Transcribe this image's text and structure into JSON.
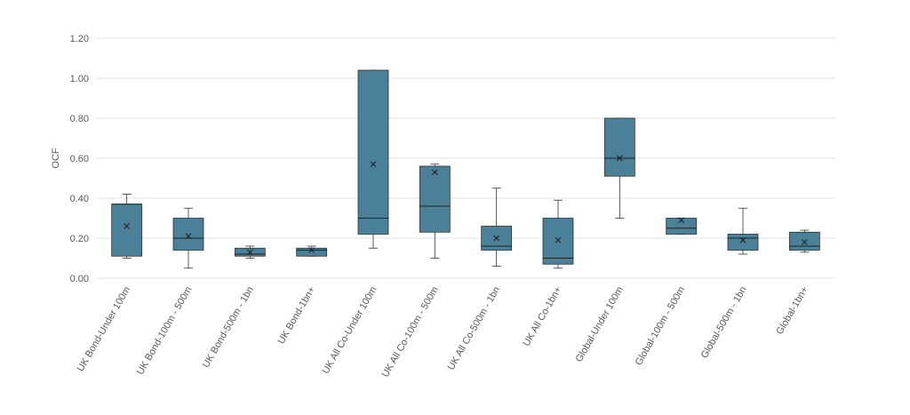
{
  "chart_data": {
    "type": "box",
    "title": "",
    "xlabel": "",
    "ylabel": "OCF",
    "ylim": [
      0,
      1.2
    ],
    "yticks": [
      "0.00",
      "0.20",
      "0.40",
      "0.60",
      "0.80",
      "1.00",
      "1.20"
    ],
    "grid": true,
    "legend": "none",
    "box_color": "#4a8199",
    "categories": [
      "UK Bond-Under 100m",
      "UK Bond-100m - 500m",
      "UK Bond-500m - 1bn",
      "UK Bond-1bn+",
      "UK All Co-Under 100m",
      "UK All Co-100m - 500m",
      "UK All Co-500m - 1bn",
      "UK All Co-1bn+",
      "Global-Under 100m",
      "Global-100m - 500m",
      "Global-500m - 1bn",
      "Global-1bn+"
    ],
    "boxes": [
      {
        "min": 0.1,
        "q1": 0.11,
        "median": 0.37,
        "q3": 0.37,
        "max": 0.42,
        "mean": 0.26
      },
      {
        "min": 0.05,
        "q1": 0.14,
        "median": 0.2,
        "q3": 0.3,
        "max": 0.35,
        "mean": 0.21
      },
      {
        "min": 0.1,
        "q1": 0.11,
        "median": 0.12,
        "q3": 0.15,
        "max": 0.16,
        "mean": 0.13
      },
      {
        "min": 0.11,
        "q1": 0.11,
        "median": 0.14,
        "q3": 0.15,
        "max": 0.16,
        "mean": 0.14
      },
      {
        "min": 0.15,
        "q1": 0.22,
        "median": 0.3,
        "q3": 1.04,
        "max": 1.04,
        "mean": 0.57
      },
      {
        "min": 0.1,
        "q1": 0.23,
        "median": 0.36,
        "q3": 0.56,
        "max": 0.57,
        "mean": 0.53
      },
      {
        "min": 0.06,
        "q1": 0.14,
        "median": 0.16,
        "q3": 0.26,
        "max": 0.45,
        "mean": 0.2
      },
      {
        "min": 0.05,
        "q1": 0.07,
        "median": 0.1,
        "q3": 0.3,
        "max": 0.39,
        "mean": 0.19
      },
      {
        "min": 0.3,
        "q1": 0.51,
        "median": 0.6,
        "q3": 0.8,
        "max": 0.8,
        "mean": 0.6
      },
      {
        "min": 0.22,
        "q1": 0.22,
        "median": 0.25,
        "q3": 0.3,
        "max": 0.3,
        "mean": 0.29
      },
      {
        "min": 0.12,
        "q1": 0.14,
        "median": 0.2,
        "q3": 0.22,
        "max": 0.35,
        "mean": 0.19
      },
      {
        "min": 0.13,
        "q1": 0.14,
        "median": 0.16,
        "q3": 0.23,
        "max": 0.24,
        "mean": 0.18
      }
    ]
  }
}
